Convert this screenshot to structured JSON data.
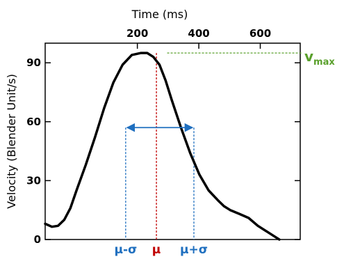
{
  "chart_data": {
    "type": "line",
    "xlabel": "Time (ms)",
    "ylabel": "Velocity (Blender Unit/s)",
    "x_axis_position": "top",
    "xlim": [
      -100,
      730
    ],
    "ylim": [
      0,
      100
    ],
    "x_ticks": [
      200,
      400,
      600
    ],
    "y_ticks": [
      0,
      30,
      60,
      90
    ],
    "grid": false,
    "series": [
      {
        "color": "#000000",
        "x": [
          -100,
          -78,
          -58,
          -38,
          -18,
          2,
          32,
          62,
          92,
          122,
          152,
          182,
          212,
          232,
          252,
          262,
          272,
          292,
          312,
          342,
          372,
          402,
          432,
          462,
          482,
          502,
          532,
          562,
          592,
          622,
          652,
          682,
          712,
          730
        ],
        "y": [
          8,
          6.5,
          7,
          10,
          16,
          25,
          38,
          52,
          67,
          80,
          89,
          94,
          95,
          95,
          93,
          91,
          89,
          81,
          71,
          57,
          44,
          33,
          25,
          20,
          17,
          15,
          13,
          11,
          7,
          4,
          1,
          -2,
          -5,
          -7
        ]
      }
    ],
    "annotations": {
      "mu": {
        "label": "μ",
        "x": 262,
        "color": "#c00000"
      },
      "mu_minus_sigma": {
        "label": "μ-σ",
        "x": 162,
        "y": 57,
        "color": "#1f6fbf"
      },
      "mu_plus_sigma": {
        "label": "μ+σ",
        "x": 384,
        "y": 57,
        "color": "#1f6fbf"
      },
      "vmax": {
        "label_main": "v",
        "label_sub": "max",
        "y": 95,
        "x_start": 297,
        "color": "#5aa02c"
      }
    }
  }
}
